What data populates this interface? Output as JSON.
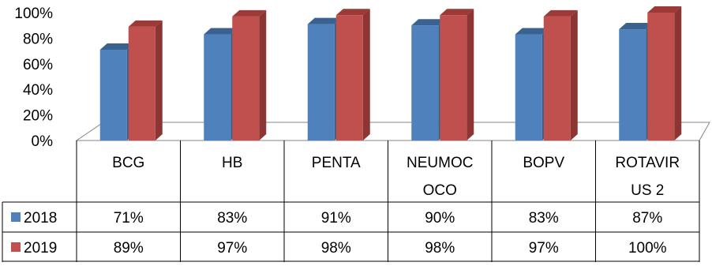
{
  "chart_data": {
    "type": "bar",
    "title": "",
    "xlabel": "",
    "ylabel": "",
    "ylim": [
      0,
      100
    ],
    "y_unit": "%",
    "y_ticks": [
      "0%",
      "20%",
      "40%",
      "60%",
      "80%",
      "100%"
    ],
    "categories": [
      "BCG",
      "HB",
      "PENTA",
      "NEUMOCOCO",
      "BOPV",
      "ROTAVIRUS 2"
    ],
    "category_display": [
      [
        "BCG"
      ],
      [
        "HB"
      ],
      [
        "PENTA"
      ],
      [
        "NEUMOC",
        "OCO"
      ],
      [
        "BOPV"
      ],
      [
        "ROTAVIR",
        "US 2"
      ]
    ],
    "series": [
      {
        "name": "2018",
        "values": [
          71,
          83,
          91,
          90,
          83,
          87
        ],
        "labels": [
          "71%",
          "83%",
          "91%",
          "90%",
          "83%",
          "87%"
        ],
        "color": "#4F81BD",
        "side_color": "#385D8A",
        "top_color": "#3A6190"
      },
      {
        "name": "2019",
        "values": [
          89,
          97,
          98,
          98,
          97,
          100
        ],
        "labels": [
          "89%",
          "97%",
          "98%",
          "98%",
          "97%",
          "100%"
        ],
        "color": "#C0504D",
        "side_color": "#8C3533",
        "top_color": "#9B3A37"
      }
    ],
    "legend": "data-table",
    "grid": false,
    "style": "3d-clustered-column"
  }
}
